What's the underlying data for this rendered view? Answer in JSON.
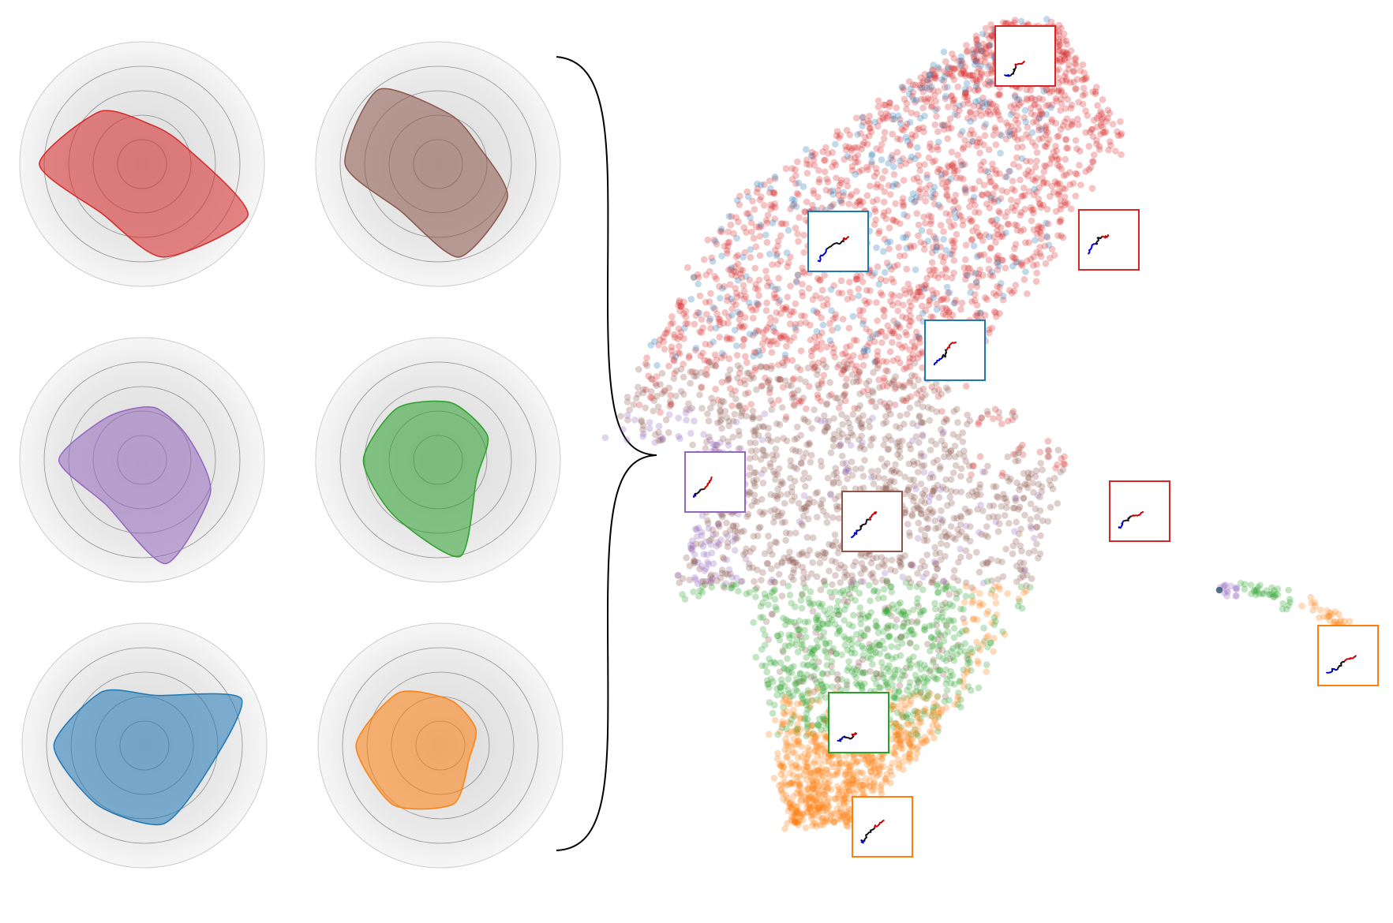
{
  "colors": {
    "red": "#d62728",
    "brown": "#8c564b",
    "purple": "#9467bd",
    "green": "#2ca02c",
    "blue": "#1f77b4",
    "orange": "#ff7f0e",
    "traj_start": "#0000cc",
    "traj_mid": "#111111",
    "traj_end": "#cc0000",
    "ring_fill": "#e4e4e4"
  },
  "radar_panels": [
    {
      "id": "radar-red",
      "color": "red",
      "axes": 7,
      "values": [
        0.84,
        0.55,
        0.33,
        0.37,
        0.96,
        0.78,
        0.52
      ]
    },
    {
      "id": "radar-brown",
      "color": "brown",
      "axes": 7,
      "values": [
        0.76,
        0.78,
        0.42,
        0.36,
        0.63,
        0.78,
        0.49
      ]
    },
    {
      "id": "radar-purple",
      "color": "purple",
      "axes": 7,
      "values": [
        0.68,
        0.45,
        0.44,
        0.42,
        0.62,
        0.87,
        0.47
      ]
    },
    {
      "id": "radar-green",
      "color": "green",
      "axes": 7,
      "values": [
        0.61,
        0.54,
        0.48,
        0.45,
        0.35,
        0.81,
        0.58
      ]
    },
    {
      "id": "radar-blue",
      "color": "blue",
      "axes": 7,
      "values": [
        0.74,
        0.56,
        0.42,
        0.88,
        0.55,
        0.66,
        0.62
      ]
    },
    {
      "id": "radar-orange",
      "color": "orange",
      "axes": 7,
      "values": [
        0.69,
        0.55,
        0.38,
        0.32,
        0.26,
        0.49,
        0.62
      ]
    }
  ],
  "embedding": {
    "clusters": [
      "red",
      "blue",
      "brown",
      "purple",
      "green",
      "orange"
    ],
    "insets": [
      {
        "id": "inset-red-top",
        "color": "red"
      },
      {
        "id": "inset-blue-upper",
        "color": "blue"
      },
      {
        "id": "inset-red-right",
        "color": "red"
      },
      {
        "id": "inset-blue-center",
        "color": "blue"
      },
      {
        "id": "inset-purple-left",
        "color": "purple"
      },
      {
        "id": "inset-brown-center",
        "color": "brown"
      },
      {
        "id": "inset-red-lower-right",
        "color": "red"
      },
      {
        "id": "inset-orange-far-right",
        "color": "orange"
      },
      {
        "id": "inset-green-bottom",
        "color": "green"
      },
      {
        "id": "inset-orange-bottom",
        "color": "orange"
      }
    ]
  }
}
